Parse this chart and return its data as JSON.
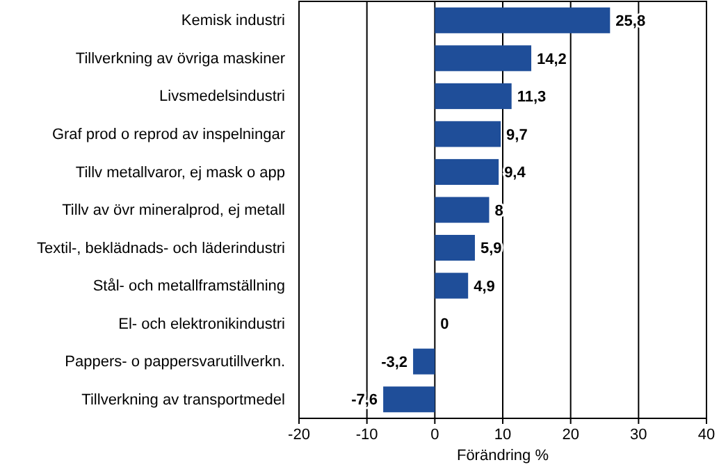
{
  "chart_data": {
    "type": "bar",
    "orientation": "horizontal",
    "xlabel": "Förändring %",
    "categories": [
      "Kemisk industri",
      "Tillverkning av övriga maskiner",
      "Livsmedelsindustri",
      "Graf prod o reprod av inspelningar",
      "Tillv metallvaror, ej mask o app",
      "Tillv av övr mineralprod, ej metall",
      "Textil-, beklädnads- och läderindustri",
      "Stål- och metallframställning",
      "El- och elektronikindustri",
      "Pappers- o pappersvarutillverkn.",
      "Tillverkning av transportmedel"
    ],
    "values": [
      25.8,
      14.2,
      11.3,
      9.7,
      9.4,
      8,
      5.9,
      4.9,
      0,
      -3.2,
      -7.6
    ],
    "value_labels": [
      "25,8",
      "14,2",
      "11,3",
      "9,7",
      "9,4",
      "8",
      "5,9",
      "4,9",
      "0",
      "-3,2",
      "-7,6"
    ],
    "color": "#1f4e99",
    "xlim": [
      -20,
      40
    ],
    "xticks": [
      -20,
      -10,
      0,
      10,
      20,
      30,
      40
    ],
    "grid": "x"
  }
}
